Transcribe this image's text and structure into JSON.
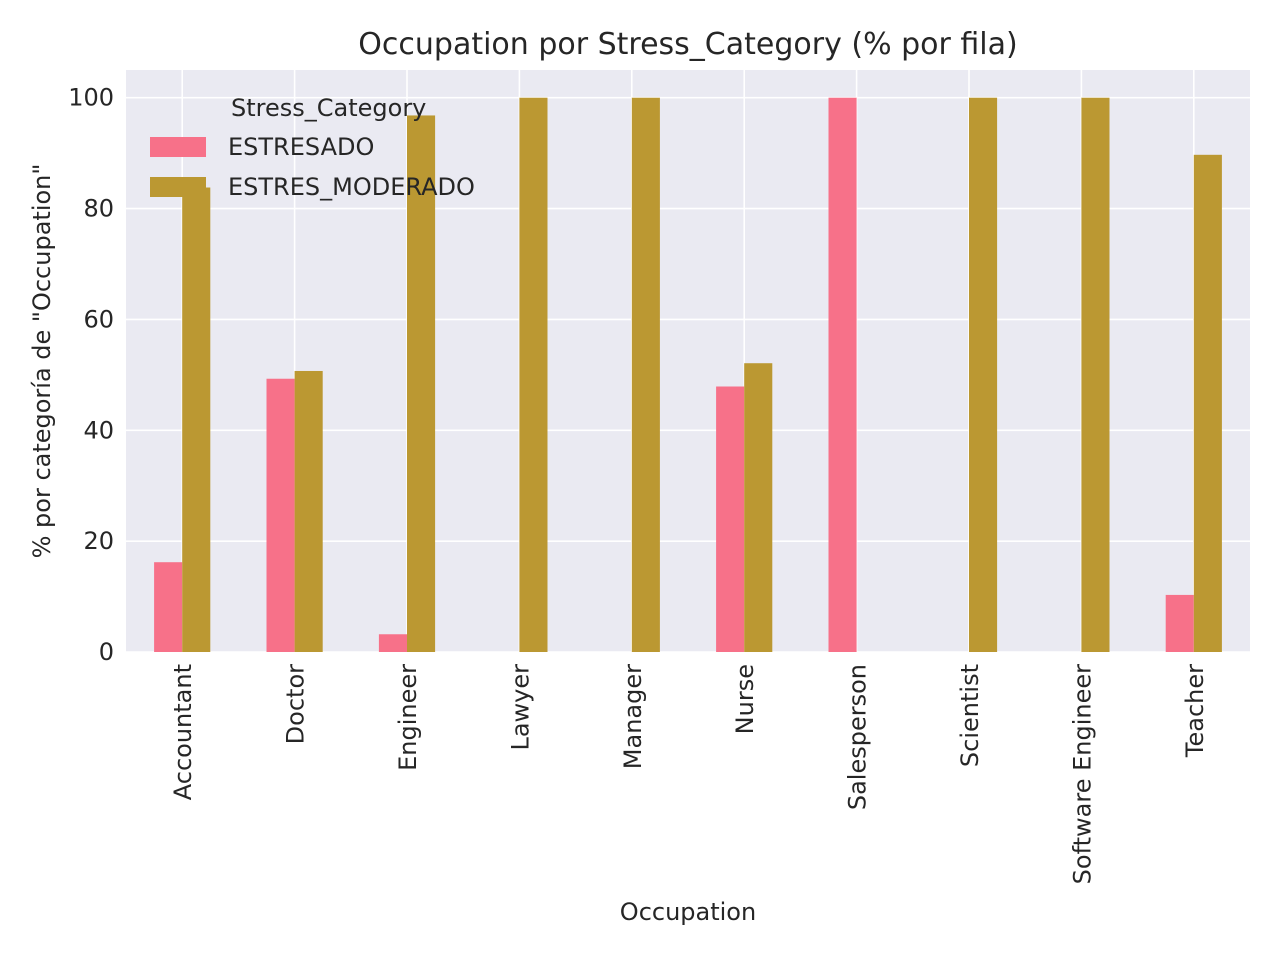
{
  "chart_data": {
    "type": "bar",
    "title": "Occupation por Stress_Category (% por fila)",
    "xlabel": "Occupation",
    "ylabel": "% por categoría de \"Occupation\"",
    "categories": [
      "Accountant",
      "Doctor",
      "Engineer",
      "Lawyer",
      "Manager",
      "Nurse",
      "Salesperson",
      "Scientist",
      "Software Engineer",
      "Teacher"
    ],
    "series": [
      {
        "name": "ESTRESADO",
        "color": "#f77189",
        "values": [
          16.2,
          49.3,
          3.2,
          0,
          0,
          47.9,
          100,
          0,
          0,
          10.3
        ]
      },
      {
        "name": "ESTRES_MODERADO",
        "color": "#bb9832",
        "values": [
          83.8,
          50.7,
          96.8,
          100,
          100,
          52.1,
          0,
          100,
          100,
          89.7
        ]
      }
    ],
    "ylim": [
      0,
      105
    ],
    "yticks": [
      0,
      20,
      40,
      60,
      80,
      100
    ],
    "grid": true,
    "legend": {
      "title": "Stress_Category",
      "placement": "top-left"
    }
  }
}
